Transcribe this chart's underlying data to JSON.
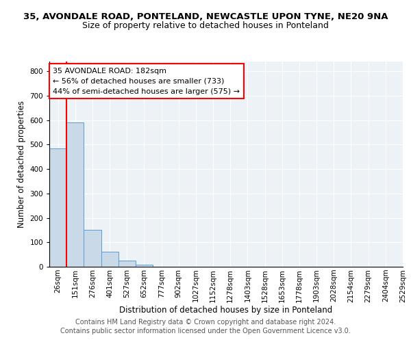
{
  "title": "35, AVONDALE ROAD, PONTELAND, NEWCASTLE UPON TYNE, NE20 9NA",
  "subtitle": "Size of property relative to detached houses in Ponteland",
  "xlabel": "Distribution of detached houses by size in Ponteland",
  "ylabel": "Number of detached properties",
  "bar_values": [
    485,
    590,
    150,
    63,
    25,
    8,
    0,
    0,
    0,
    0,
    0,
    0,
    0,
    0,
    0,
    0,
    0,
    0,
    0,
    0
  ],
  "bin_labels": [
    "26sqm",
    "151sqm",
    "276sqm",
    "401sqm",
    "527sqm",
    "652sqm",
    "777sqm",
    "902sqm",
    "1027sqm",
    "1152sqm",
    "1278sqm",
    "1403sqm",
    "1528sqm",
    "1653sqm",
    "1778sqm",
    "1903sqm",
    "2028sqm",
    "2154sqm",
    "2279sqm",
    "2404sqm",
    "2529sqm"
  ],
  "bar_color": "#c9d9e8",
  "bar_edge_color": "#5b9bd5",
  "vline_color": "red",
  "annotation_line1": "35 AVONDALE ROAD: 182sqm",
  "annotation_line2": "← 56% of detached houses are smaller (733)",
  "annotation_line3": "44% of semi-detached houses are larger (575) →",
  "annotation_box_color": "white",
  "annotation_box_edge": "red",
  "ylim": [
    0,
    840
  ],
  "yticks": [
    0,
    100,
    200,
    300,
    400,
    500,
    600,
    700,
    800
  ],
  "footer1": "Contains HM Land Registry data © Crown copyright and database right 2024.",
  "footer2": "Contains public sector information licensed under the Open Government Licence v3.0.",
  "title_fontsize": 9.5,
  "subtitle_fontsize": 9,
  "axis_label_fontsize": 8.5,
  "tick_fontsize": 7.5,
  "annotation_fontsize": 8,
  "footer_fontsize": 7,
  "background_color": "#edf2f7"
}
